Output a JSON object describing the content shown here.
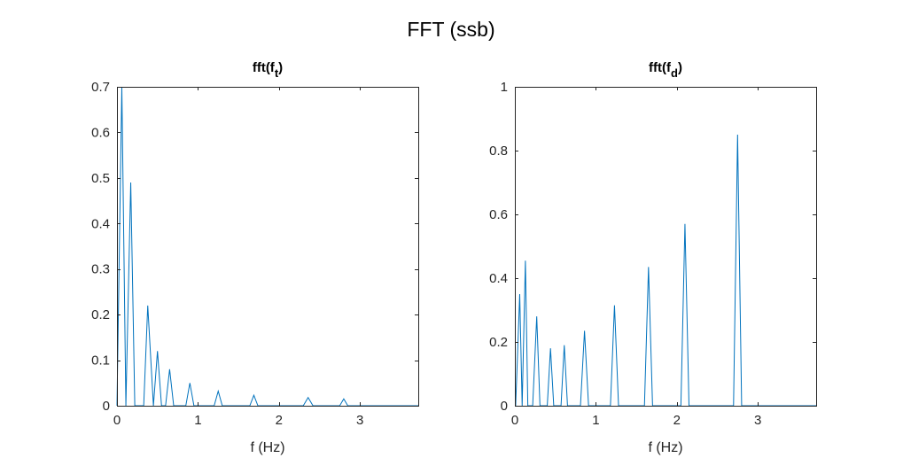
{
  "figure": {
    "title": "FFT (ssb)",
    "line_color": "#0072BD"
  },
  "chart_data": [
    {
      "type": "line",
      "title": "fft(f_t)",
      "title_main": "fft(f",
      "title_sub": "t",
      "title_close": ")",
      "xlabel": "f (Hz)",
      "ylabel": "",
      "xlim": [
        0,
        3.72
      ],
      "ylim": [
        0,
        0.7
      ],
      "xticks": [
        0,
        1,
        2,
        3
      ],
      "xtick_labels": [
        "0",
        "1",
        "2",
        "3"
      ],
      "yticks": [
        0,
        0.1,
        0.2,
        0.3,
        0.4,
        0.5,
        0.6,
        0.7
      ],
      "ytick_labels": [
        "0",
        "0.1",
        "0.2",
        "0.3",
        "0.4",
        "0.5",
        "0.6",
        "0.7"
      ],
      "grid": false,
      "series": [
        {
          "x": [
            0,
            0.06,
            0.11,
            0.11,
            0.17,
            0.22,
            0.33,
            0.38,
            0.45,
            0.5,
            0.55,
            0.6,
            0.65,
            0.7,
            0.85,
            0.9,
            0.95,
            1.2,
            1.25,
            1.3,
            1.64,
            1.69,
            1.74,
            2.3,
            2.36,
            2.42,
            2.75,
            2.8,
            2.85,
            3.72
          ],
          "y": [
            0,
            0.7,
            0,
            0,
            0.49,
            0,
            0,
            0.22,
            0,
            0.12,
            0,
            0,
            0.08,
            0,
            0,
            0.05,
            0,
            0,
            0.032,
            0,
            0,
            0.023,
            0,
            0,
            0.018,
            0,
            0,
            0.015,
            0,
            0
          ]
        }
      ]
    },
    {
      "type": "line",
      "title": "fft(f_d)",
      "title_main": "fft(f",
      "title_sub": "d",
      "title_close": ")",
      "xlabel": "f (Hz)",
      "ylabel": "",
      "xlim": [
        0,
        3.72
      ],
      "ylim": [
        0,
        1
      ],
      "xticks": [
        0,
        1,
        2,
        3
      ],
      "xtick_labels": [
        "0",
        "1",
        "2",
        "3"
      ],
      "yticks": [
        0,
        0.2,
        0.4,
        0.6,
        0.8,
        1
      ],
      "ytick_labels": [
        "0",
        "0.2",
        "0.4",
        "0.6",
        "0.8",
        "1"
      ],
      "grid": false,
      "series": [
        {
          "x": [
            0,
            0.01,
            0.06,
            0.09,
            0.13,
            0.16,
            0.22,
            0.27,
            0.31,
            0.4,
            0.44,
            0.48,
            0.57,
            0.61,
            0.65,
            0.81,
            0.86,
            0.91,
            1.18,
            1.23,
            1.28,
            1.6,
            1.65,
            1.7,
            2.05,
            2.1,
            2.15,
            2.7,
            2.75,
            2.8,
            3.72
          ],
          "y": [
            0,
            0,
            0.35,
            0,
            0.455,
            0,
            0,
            0.28,
            0,
            0,
            0.18,
            0,
            0,
            0.19,
            0,
            0,
            0.235,
            0,
            0,
            0.315,
            0,
            0,
            0.435,
            0,
            0,
            0.57,
            0,
            0,
            0.85,
            0,
            0
          ]
        }
      ]
    }
  ]
}
